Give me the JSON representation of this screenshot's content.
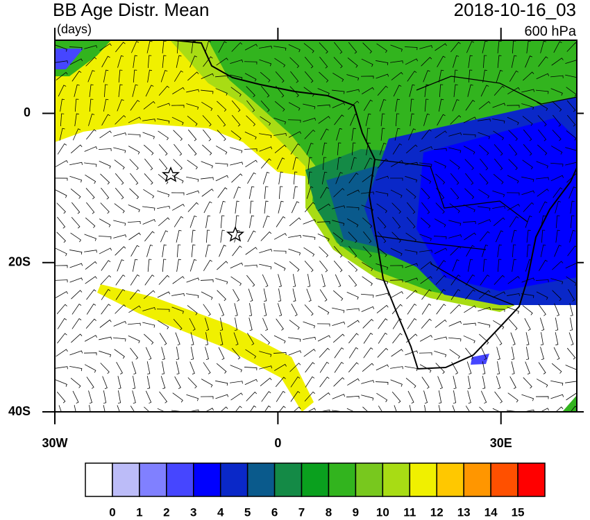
{
  "header": {
    "title": "BB Age Distr. Mean",
    "units": "(days)",
    "time": "2018-10-16_03",
    "level": "600 hPa"
  },
  "map": {
    "lon_range": [
      -30,
      40.2
    ],
    "lat_range": [
      9.8,
      -40
    ],
    "lat_ticks": [
      {
        "value": 0,
        "label": "0"
      },
      {
        "value": -20,
        "label": "20S"
      },
      {
        "value": -40,
        "label": "40S"
      }
    ],
    "lon_ticks": [
      {
        "value": -30,
        "label": "30W"
      },
      {
        "value": 0,
        "label": "0"
      },
      {
        "value": 30,
        "label": "30E"
      }
    ]
  },
  "colorbar": {
    "colors": [
      "#ffffff",
      "#bcbcf8",
      "#8080ff",
      "#4646ff",
      "#0000ff",
      "#0a28c8",
      "#0a5a8c",
      "#148a46",
      "#0aa01e",
      "#32b41e",
      "#78c81e",
      "#a8dc14",
      "#f0f000",
      "#ffc800",
      "#ff9600",
      "#ff5000",
      "#ff0000"
    ],
    "labels": [
      "0",
      "1",
      "2",
      "3",
      "4",
      "5",
      "6",
      "7",
      "8",
      "9",
      "10",
      "11",
      "12",
      "13",
      "14",
      "15"
    ]
  }
}
